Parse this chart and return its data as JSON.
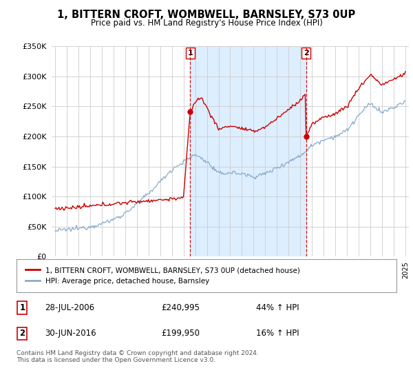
{
  "title": "1, BITTERN CROFT, WOMBWELL, BARNSLEY, S73 0UP",
  "subtitle": "Price paid vs. HM Land Registry's House Price Index (HPI)",
  "legend_label_red": "1, BITTERN CROFT, WOMBWELL, BARNSLEY, S73 0UP (detached house)",
  "legend_label_blue": "HPI: Average price, detached house, Barnsley",
  "transaction1_date": "28-JUL-2006",
  "transaction1_price": "£240,995",
  "transaction1_hpi": "44% ↑ HPI",
  "transaction2_date": "30-JUN-2016",
  "transaction2_price": "£199,950",
  "transaction2_hpi": "16% ↑ HPI",
  "footer": "Contains HM Land Registry data © Crown copyright and database right 2024.\nThis data is licensed under the Open Government Licence v3.0.",
  "ylim": [
    0,
    350000
  ],
  "yticks": [
    0,
    50000,
    100000,
    150000,
    200000,
    250000,
    300000,
    350000
  ],
  "color_red": "#cc0000",
  "color_blue": "#88aacc",
  "background_color": "#ffffff",
  "plot_bg_color": "#ffffff",
  "highlight_bg_color": "#ddeeff",
  "transaction1_x": 2006.57,
  "transaction1_y": 240995,
  "transaction2_x": 2016.5,
  "transaction2_y": 199950,
  "xmin": 1995,
  "xmax": 2025
}
